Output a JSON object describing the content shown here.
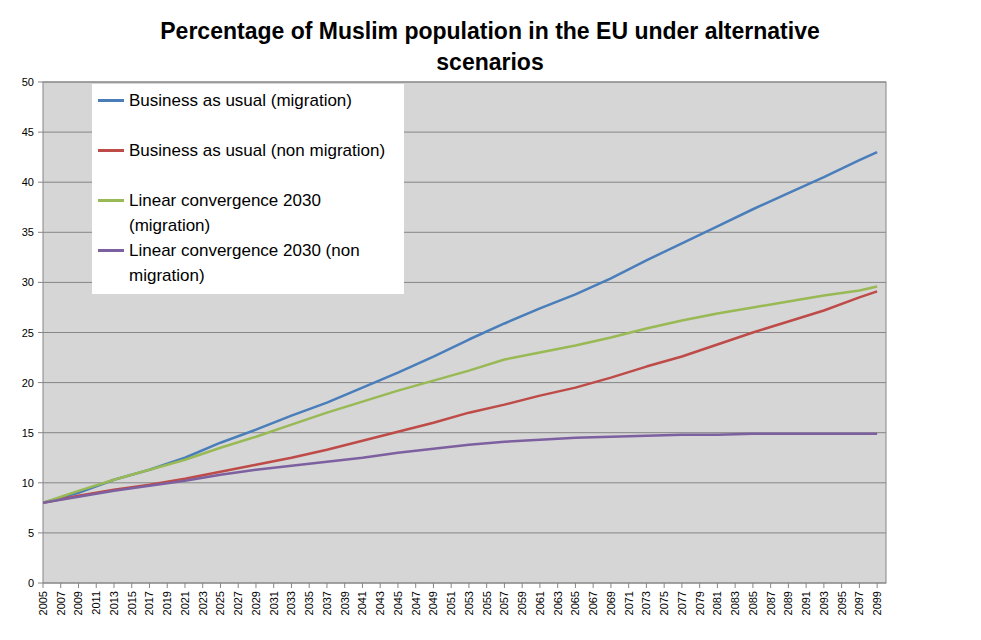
{
  "chart_data": {
    "type": "line",
    "title": "Percentage of Muslim population in the EU under alternative scenarios",
    "x": [
      2005,
      2009,
      2013,
      2017,
      2021,
      2025,
      2029,
      2033,
      2037,
      2041,
      2045,
      2049,
      2053,
      2057,
      2061,
      2065,
      2069,
      2073,
      2077,
      2081,
      2085,
      2089,
      2093,
      2097,
      2099
    ],
    "series": [
      {
        "name": "Business as usual (migration)",
        "color": "#4a7ebb",
        "values": [
          8.0,
          9.0,
          10.3,
          11.3,
          12.5,
          14.0,
          15.3,
          16.7,
          18.0,
          19.5,
          21.0,
          22.6,
          24.3,
          25.9,
          27.4,
          28.8,
          30.4,
          32.2,
          33.9,
          35.6,
          37.3,
          38.9,
          40.5,
          42.2,
          43.0
        ]
      },
      {
        "name": "Business as usual (non migration)",
        "color": "#be4b48",
        "values": [
          8.0,
          8.7,
          9.3,
          9.8,
          10.4,
          11.1,
          11.8,
          12.5,
          13.3,
          14.2,
          15.1,
          16.0,
          17.0,
          17.8,
          18.7,
          19.5,
          20.5,
          21.6,
          22.6,
          23.8,
          25.0,
          26.1,
          27.2,
          28.5,
          29.1
        ]
      },
      {
        "name": "Linear convergence 2030 (migration)",
        "color": "#98b954",
        "values": [
          8.0,
          9.2,
          10.3,
          11.3,
          12.3,
          13.5,
          14.6,
          15.8,
          17.0,
          18.1,
          19.2,
          20.2,
          21.2,
          22.3,
          23.0,
          23.7,
          24.5,
          25.4,
          26.2,
          26.9,
          27.5,
          28.1,
          28.7,
          29.2,
          29.6
        ]
      },
      {
        "name": "Linear convergence 2030 (non migration)",
        "color": "#7d60a0",
        "values": [
          8.0,
          8.6,
          9.2,
          9.7,
          10.2,
          10.8,
          11.3,
          11.7,
          12.1,
          12.5,
          13.0,
          13.4,
          13.8,
          14.1,
          14.3,
          14.5,
          14.6,
          14.7,
          14.8,
          14.8,
          14.9,
          14.9,
          14.9,
          14.9,
          14.9
        ]
      }
    ],
    "xlim": [
      2005,
      2100
    ],
    "xticks": [
      2005,
      2007,
      2009,
      2011,
      2013,
      2015,
      2017,
      2019,
      2021,
      2023,
      2025,
      2027,
      2029,
      2031,
      2033,
      2035,
      2037,
      2039,
      2041,
      2043,
      2045,
      2047,
      2049,
      2051,
      2053,
      2055,
      2057,
      2059,
      2061,
      2063,
      2065,
      2067,
      2069,
      2071,
      2073,
      2075,
      2077,
      2079,
      2081,
      2083,
      2085,
      2087,
      2089,
      2091,
      2093,
      2095,
      2097,
      2099
    ],
    "ylim": [
      0,
      50
    ],
    "yticks": [
      0,
      5,
      10,
      15,
      20,
      25,
      30,
      35,
      40,
      45,
      50
    ],
    "grid": true,
    "legend": "top-left"
  }
}
